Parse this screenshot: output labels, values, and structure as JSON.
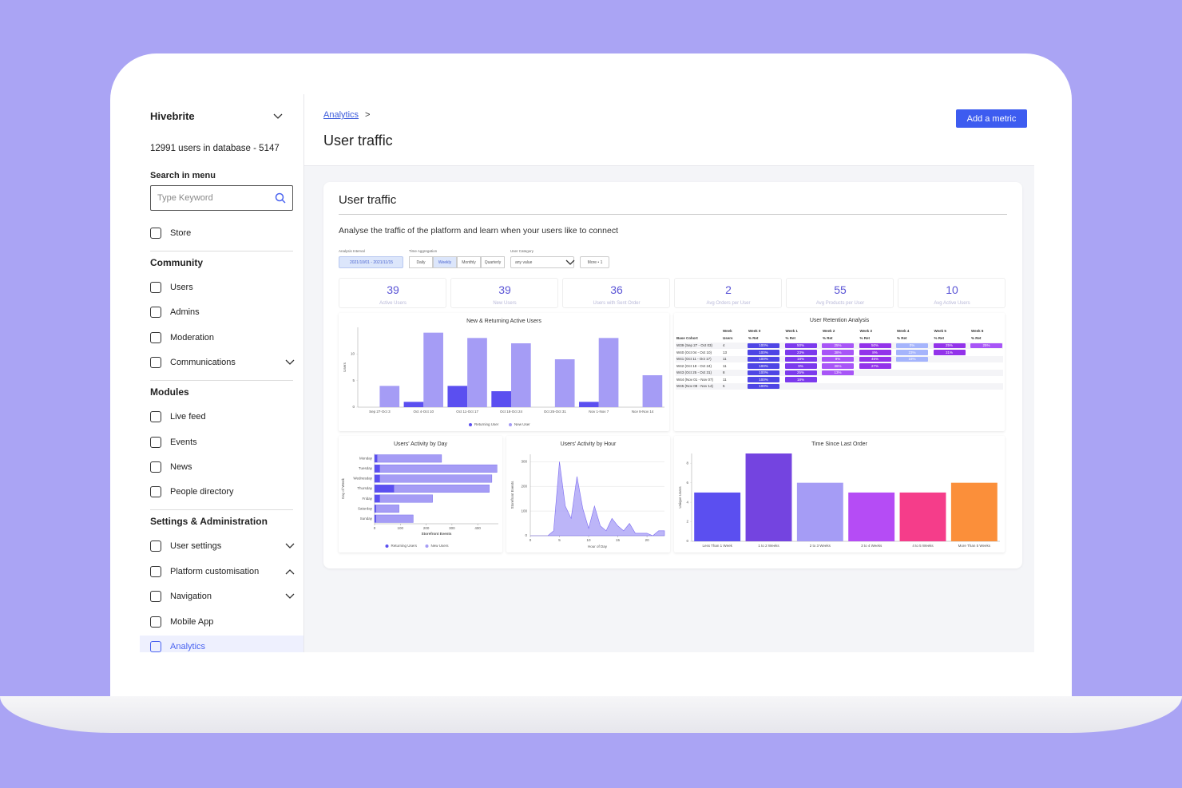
{
  "sidebar": {
    "org": "Hivebrite",
    "users_info": "12991 users in database - 5147",
    "search_label": "Search in menu",
    "search_placeholder": "Type Keyword",
    "top_items": [
      {
        "label": "Store"
      }
    ],
    "sections": [
      {
        "title": "Community",
        "items": [
          {
            "label": "Users"
          },
          {
            "label": "Admins"
          },
          {
            "label": "Moderation"
          },
          {
            "label": "Communications",
            "chevron": "down"
          }
        ]
      },
      {
        "title": "Modules",
        "items": [
          {
            "label": "Live feed"
          },
          {
            "label": "Events"
          },
          {
            "label": "News"
          },
          {
            "label": "People directory"
          }
        ]
      },
      {
        "title": "Settings & Administration",
        "items": [
          {
            "label": "User settings",
            "chevron": "down"
          },
          {
            "label": "Platform customisation",
            "chevron": "up"
          },
          {
            "label": "Navigation",
            "chevron": "down"
          },
          {
            "label": "Mobile App"
          },
          {
            "label": "Analytics",
            "active": true
          }
        ]
      }
    ]
  },
  "header": {
    "breadcrumb": "Analytics",
    "separator": ">",
    "title": "User traffic",
    "button": "Add a metric"
  },
  "card": {
    "title": "User traffic",
    "description": "Analyse the traffic of the platform and learn when your users like to connect",
    "filters": {
      "interval": {
        "label": "Analysis Interval",
        "value": "2021/10/01 - 2021/11/15"
      },
      "aggregation": {
        "label": "Time Aggregation",
        "options": [
          "Daily",
          "Weekly",
          "Monthly",
          "Quarterly"
        ],
        "selected": 1
      },
      "category": {
        "label": "User Category",
        "value": "any value"
      },
      "more": "More • 1"
    },
    "kpis": [
      {
        "value": 39,
        "label": "Active Users"
      },
      {
        "value": 39,
        "label": "New Users"
      },
      {
        "value": 36,
        "label": "Users with Sent Order"
      },
      {
        "value": 2,
        "label": "Avg Orders per User"
      },
      {
        "value": 55,
        "label": "Avg Products per User"
      },
      {
        "value": 10,
        "label": "Avg Active Users"
      }
    ]
  },
  "chart_data": [
    {
      "type": "bar",
      "title": "New & Returning Active Users",
      "categories": [
        "Sep 27-Oct 3",
        "Oct 4-Oct 10",
        "Oct 11-Oct 17",
        "Oct 18-Oct 24",
        "Oct 25-Oct 31",
        "Nov 1-Nov 7",
        "Nov 8-Nov 14"
      ],
      "series": [
        {
          "name": "Returning User",
          "color": "#5b4ff0",
          "values": [
            0,
            1,
            4,
            3,
            0,
            1,
            0
          ]
        },
        {
          "name": "New User",
          "color": "#a59cf5",
          "values": [
            4,
            14,
            13,
            12,
            9,
            13,
            6
          ]
        }
      ],
      "ylim": [
        0,
        15
      ],
      "yticks": [
        0,
        5,
        10
      ],
      "ylabel": "Users"
    },
    {
      "type": "hbar",
      "title": "Users' Activity by Day",
      "categories": [
        "Monday",
        "Tuesday",
        "Wednesday",
        "Thursday",
        "Friday",
        "Saturday",
        "Sunday"
      ],
      "series": [
        {
          "name": "Returning Users",
          "color": "#5b4ff0",
          "values": [
            10,
            20,
            20,
            75,
            20,
            5,
            5
          ]
        },
        {
          "name": "New Users",
          "color": "#a59cf5",
          "values": [
            250,
            455,
            435,
            370,
            205,
            90,
            145
          ]
        }
      ],
      "stacked": true,
      "xlim": [
        0,
        480
      ],
      "xticks": [
        0,
        100,
        200,
        300,
        400
      ],
      "xlabel": "Storefront Events",
      "ylabel": "Day of Week"
    },
    {
      "type": "area",
      "title": "Users' Activity by Hour",
      "x": [
        0,
        1,
        2,
        3,
        4,
        5,
        6,
        7,
        8,
        9,
        10,
        11,
        12,
        13,
        14,
        15,
        16,
        17,
        18,
        19,
        20,
        21,
        22,
        23
      ],
      "values": [
        0,
        0,
        0,
        0,
        20,
        300,
        120,
        70,
        240,
        110,
        30,
        120,
        40,
        20,
        70,
        40,
        20,
        50,
        10,
        10,
        10,
        0,
        20,
        20
      ],
      "color": "#a59cf5",
      "xlim": [
        0,
        23
      ],
      "ylim": [
        0,
        330
      ],
      "xticks": [
        0,
        5,
        10,
        15,
        20
      ],
      "yticks": [
        0,
        100,
        200,
        300
      ],
      "xlabel": "Hour of Day",
      "ylabel": "Storefront Events",
      "grid": true
    },
    {
      "type": "bar",
      "title": "Time Since Last Order",
      "categories": [
        "Less Than 1 Week",
        "1 to 2 Weeks",
        "2 to 3 Weeks",
        "3 to 4 Weeks",
        "4 to 5 Weeks",
        "More Than 5 Weeks"
      ],
      "values": [
        5,
        9,
        6,
        5,
        5,
        6
      ],
      "colors": [
        "#5b4ff0",
        "#7444e0",
        "#a59cf5",
        "#b54cf5",
        "#f53d8a",
        "#fb8f3a"
      ],
      "ylim": [
        0,
        9
      ],
      "yticks": [
        0,
        2,
        4,
        6,
        8
      ],
      "ylabel": "Unique Users"
    }
  ],
  "retention_table": {
    "title": "User Retention Analysis",
    "week_header": "Week",
    "weeks": [
      "Week 0",
      "Week 1",
      "Week 2",
      "Week 3",
      "Week 4",
      "Week 5",
      "Week 6"
    ],
    "cohort_header": "Base Cohort",
    "users_header": "Users",
    "ret_header": "% Ret",
    "colors": [
      "#4f46e5",
      "#7c3aed",
      "#a855f7",
      "#9333ea",
      "#a5b4fc",
      "#9333ea",
      "#a855f7"
    ],
    "rows": [
      {
        "cohort": "W39 (Sep 27 - Oct 03)",
        "users": 4,
        "cells": [
          "100%",
          "50%",
          "25%",
          "50%",
          "0%",
          "25%",
          "25%"
        ]
      },
      {
        "cohort": "W40 (Oct 04 - Oct 10)",
        "users": 13,
        "cells": [
          "100%",
          "23%",
          "38%",
          "8%",
          "23%",
          "31%"
        ]
      },
      {
        "cohort": "W41 (Oct 11 - Oct 17)",
        "users": 11,
        "cells": [
          "100%",
          "18%",
          "9%",
          "45%",
          "18%"
        ]
      },
      {
        "cohort": "W42 (Oct 18 - Oct 24)",
        "users": 11,
        "cells": [
          "100%",
          "9%",
          "36%",
          "27%"
        ]
      },
      {
        "cohort": "W43 (Oct 25 - Oct 31)",
        "users": 8,
        "cells": [
          "100%",
          "25%",
          "13%"
        ]
      },
      {
        "cohort": "W44 (Nov 01 - Nov 07)",
        "users": 11,
        "cells": [
          "100%",
          "18%"
        ]
      },
      {
        "cohort": "W45 (Nov 08 - Nov 14)",
        "users": 5,
        "cells": [
          "100%"
        ]
      }
    ]
  }
}
